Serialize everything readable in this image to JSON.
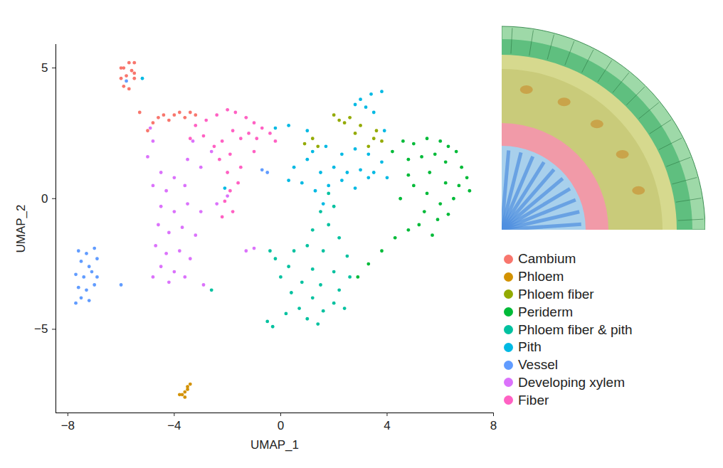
{
  "chart_data": {
    "type": "scatter",
    "x_label": "UMAP_1",
    "y_label": "UMAP_2",
    "xlim": [
      -8.45,
      8
    ],
    "ylim": [
      -8.2,
      5.9
    ],
    "xticks": [
      -8,
      -4,
      0,
      4,
      8
    ],
    "yticks": [
      -5,
      0,
      5
    ],
    "grid": false,
    "legend": "right",
    "series": [
      {
        "name": "Cambium",
        "color": "#F8766D",
        "x": [
          -5.7,
          -5.5,
          -5.9,
          -5.6,
          -5.8,
          -5.5,
          -6.0,
          -5.9,
          -5.7,
          -5.5,
          -6.0,
          -4.6,
          -4.4,
          -4.2,
          -4.0,
          -3.8,
          -3.6,
          -3.4,
          -3.2,
          -4.8,
          -5.0,
          -5.3
        ],
        "y": [
          5.2,
          5.2,
          5.0,
          4.9,
          4.7,
          4.6,
          4.6,
          4.3,
          4.2,
          4.8,
          5.0,
          3.1,
          3.2,
          3.0,
          3.2,
          3.3,
          3.1,
          3.3,
          3.2,
          2.9,
          2.6,
          3.3
        ]
      },
      {
        "name": "Phloem",
        "color": "#D39200",
        "x": [
          -3.7,
          -3.6,
          -3.5,
          -3.4,
          -3.8,
          -3.6,
          -3.5
        ],
        "y": [
          -7.5,
          -7.4,
          -7.3,
          -7.1,
          -7.5,
          -7.6,
          -7.2
        ]
      },
      {
        "name": "Phloem fiber",
        "color": "#93AA00",
        "x": [
          1.2,
          0.9,
          1.4,
          2.0,
          2.2,
          2.4,
          2.6,
          3.0,
          2.8,
          3.6,
          3.8,
          3.5,
          3.3
        ],
        "y": [
          2.3,
          2.1,
          2.0,
          3.2,
          3.0,
          2.9,
          3.1,
          2.8,
          2.5,
          2.6,
          2.2,
          2.3,
          2.0
        ]
      },
      {
        "name": "Periderm",
        "color": "#00BA38",
        "x": [
          4.6,
          5.0,
          5.5,
          6.0,
          6.3,
          6.6,
          4.8,
          5.3,
          5.8,
          6.2,
          6.8,
          7.0,
          6.7,
          7.1,
          6.5,
          6.0,
          5.5,
          5.0,
          4.8,
          5.6,
          6.2,
          5.4,
          5.9,
          6.3,
          5.2,
          4.8,
          4.3,
          3.8,
          3.3,
          2.9,
          4.2,
          4.5,
          5.7
        ],
        "y": [
          2.2,
          2.1,
          2.3,
          2.2,
          2.0,
          1.8,
          1.5,
          1.6,
          1.7,
          1.4,
          1.2,
          0.8,
          0.5,
          0.3,
          0.0,
          -0.2,
          0.2,
          0.5,
          0.9,
          1.0,
          0.6,
          -0.5,
          -0.8,
          -0.6,
          -1.0,
          -1.2,
          -1.5,
          -2.0,
          -2.5,
          -3.0,
          1.8,
          0.0,
          -1.4
        ]
      },
      {
        "name": "Phloem fiber & pith",
        "color": "#00C19F",
        "x": [
          1.5,
          1.8,
          1.2,
          2.2,
          1.0,
          1.6,
          2.5,
          0.5,
          -0.2,
          -0.4,
          0.3,
          1.2,
          2.0,
          2.6,
          0.0,
          0.8,
          1.5,
          2.2,
          0.4,
          1.2,
          2.0,
          0.7,
          1.6,
          1.0,
          0.2,
          -0.5,
          -0.3,
          2.4,
          1.4,
          1.8,
          2.0,
          -2.6
        ],
        "y": [
          -0.5,
          -1.0,
          -1.2,
          -1.5,
          -1.8,
          -2.0,
          -2.2,
          -2.0,
          -2.3,
          -2.0,
          -2.6,
          -2.7,
          -2.8,
          -3.0,
          -3.0,
          -3.2,
          -3.3,
          -3.5,
          -3.6,
          -3.8,
          -4.0,
          -4.2,
          -4.3,
          -4.6,
          -4.4,
          -4.7,
          -4.9,
          -4.2,
          -4.8,
          0.2,
          -0.3,
          -3.5
        ]
      },
      {
        "name": "Pith",
        "color": "#00B9E3",
        "x": [
          0.5,
          1.0,
          1.5,
          2.0,
          2.5,
          3.0,
          3.5,
          0.8,
          1.3,
          1.8,
          2.3,
          2.8,
          3.3,
          3.8,
          4.0,
          1.2,
          1.7,
          2.3,
          2.8,
          3.3,
          0.3,
          1.6,
          3.0,
          3.4,
          3.8,
          3.2,
          3.5,
          2.8,
          3.9,
          1.0,
          -0.2,
          0.3,
          -5.2,
          -2.1
        ],
        "y": [
          1.2,
          1.5,
          1.0,
          1.2,
          1.0,
          1.1,
          1.0,
          0.6,
          0.3,
          0.5,
          0.7,
          0.4,
          0.8,
          1.4,
          0.8,
          1.8,
          2.0,
          1.7,
          1.9,
          1.7,
          0.7,
          -0.2,
          3.8,
          4.0,
          4.1,
          3.5,
          3.3,
          3.6,
          2.6,
          2.6,
          2.7,
          2.8,
          4.6,
          0.4
        ]
      },
      {
        "name": "Vessel",
        "color": "#619CFF",
        "x": [
          -7.6,
          -7.3,
          -7.0,
          -7.5,
          -7.2,
          -6.9,
          -7.7,
          -7.4,
          -7.1,
          -7.6,
          -7.3,
          -7.0,
          -7.5,
          -7.7,
          -7.2,
          -6.9,
          -6.0,
          -5.8,
          -0.7,
          -0.5
        ],
        "y": [
          -2.0,
          -2.1,
          -1.9,
          -2.4,
          -2.6,
          -2.3,
          -2.9,
          -3.0,
          -2.8,
          -3.4,
          -3.5,
          -3.3,
          -3.8,
          -4.0,
          -3.9,
          -3.0,
          -3.3,
          4.5,
          1.1,
          1.0
        ]
      },
      {
        "name": "Developing xylem",
        "color": "#DB72FB",
        "x": [
          -4.8,
          -5.0,
          -4.5,
          -4.8,
          -4.3,
          -4.0,
          -3.5,
          -3.0,
          -3.6,
          -4.5,
          -4.0,
          -3.5,
          -3.0,
          -4.6,
          -4.2,
          -3.7,
          -3.2,
          -4.7,
          -4.3,
          -3.8,
          -3.4,
          -4.5,
          -4.0,
          -3.6,
          -4.2,
          -4.8,
          -2.9,
          -2.4,
          -1.0,
          -1.3,
          -3.3,
          -2.6,
          -2.0,
          -4.9
        ],
        "y": [
          2.2,
          1.6,
          1.0,
          0.5,
          0.3,
          0.8,
          1.5,
          1.2,
          0.5,
          -0.3,
          -0.5,
          -0.2,
          -0.5,
          -1.0,
          -1.3,
          -1.1,
          -1.4,
          -1.8,
          -2.1,
          -2.0,
          -2.3,
          -2.6,
          -2.8,
          -3.0,
          -3.2,
          -3.0,
          -3.3,
          -0.2,
          -1.9,
          -2.0,
          2.2,
          1.8,
          0.1,
          2.7
        ]
      },
      {
        "name": "Fiber",
        "color": "#FF61C3",
        "x": [
          -3.2,
          -2.8,
          -2.4,
          -2.0,
          -1.7,
          -1.3,
          -1.0,
          -0.7,
          -0.4,
          -0.2,
          -2.9,
          -2.5,
          -2.2,
          -1.8,
          -1.5,
          -1.2,
          -0.9,
          -2.3,
          -1.9,
          -1.5,
          -2.0,
          -1.6,
          -2.1,
          -1.8,
          -2.2,
          -1.9,
          -3.4,
          -1.0
        ],
        "y": [
          2.8,
          3.0,
          3.2,
          3.4,
          3.3,
          3.1,
          2.9,
          2.7,
          2.5,
          2.2,
          2.4,
          2.0,
          2.2,
          2.6,
          2.3,
          2.5,
          2.3,
          1.5,
          1.7,
          1.2,
          1.0,
          0.6,
          -0.1,
          -0.5,
          -0.7,
          0.3,
          2.3,
          1.8
        ]
      }
    ]
  }
}
